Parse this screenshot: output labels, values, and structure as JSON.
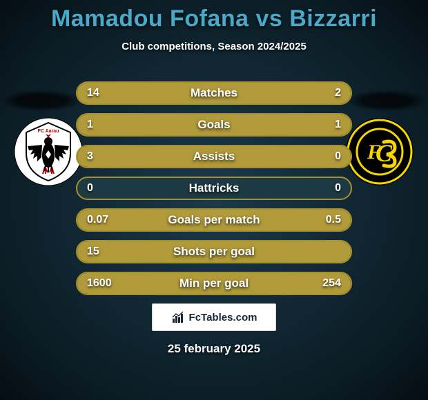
{
  "title": "Mamadou Fofana vs Bizzarri",
  "subtitle": "Club competitions, Season 2024/2025",
  "date": "25 february 2025",
  "brand": "FcTables.com",
  "colors": {
    "title_color": "#4aa8c8",
    "bar_border": "#a68f2f",
    "bar_fill": "#b09a3a",
    "bar_track": "#1d3a42",
    "text_color": "#ffffff",
    "background_from": "#1a3a4a",
    "background_to": "#050d12"
  },
  "stats": [
    {
      "label": "Matches",
      "left_value": "14",
      "right_value": "2",
      "left_pct": 87.5,
      "right_pct": 12.5
    },
    {
      "label": "Goals",
      "left_value": "1",
      "right_value": "1",
      "left_pct": 50,
      "right_pct": 50
    },
    {
      "label": "Assists",
      "left_value": "3",
      "right_value": "0",
      "left_pct": 100,
      "right_pct": 0
    },
    {
      "label": "Hattricks",
      "left_value": "0",
      "right_value": "0",
      "left_pct": 0,
      "right_pct": 0
    },
    {
      "label": "Goals per match",
      "left_value": "0.07",
      "right_value": "0.5",
      "left_pct": 12.3,
      "right_pct": 87.7
    },
    {
      "label": "Shots per goal",
      "left_value": "15",
      "right_value": "",
      "left_pct": 100,
      "right_pct": 0
    },
    {
      "label": "Min per goal",
      "left_value": "1600",
      "right_value": "254",
      "left_pct": 86.3,
      "right_pct": 13.7
    }
  ],
  "crest_left": {
    "name": "fc-aarau",
    "bg": "#ffffff",
    "accent": "#c00000",
    "eagle": "#000000"
  },
  "crest_right": {
    "name": "fc-schaffhausen",
    "bg": "#000000",
    "ring": "#f5d700",
    "letters_color": "#f5d700"
  }
}
